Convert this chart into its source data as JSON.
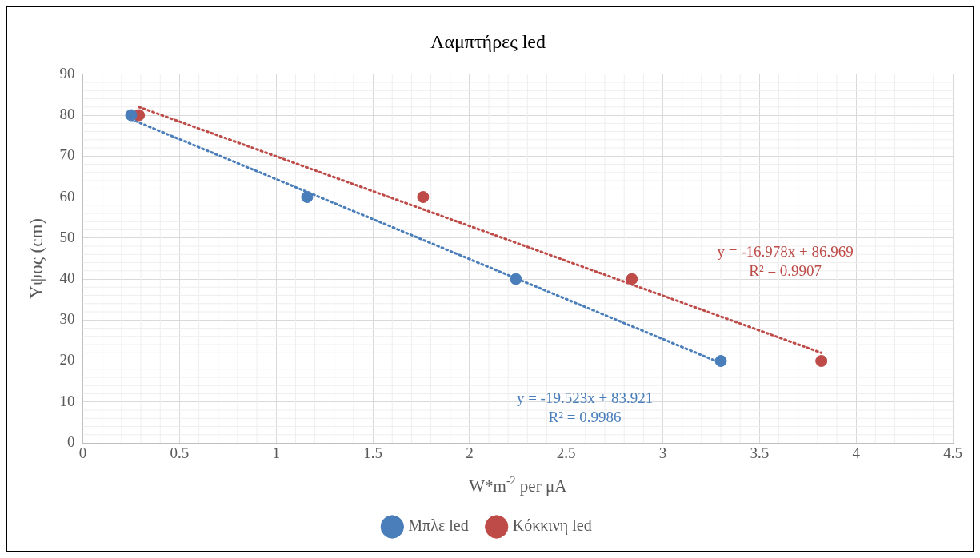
{
  "chart_data": {
    "type": "scatter",
    "title": "Λαμπτήρες led",
    "xlabel": "W*m$^{-2}$ per μA",
    "ylabel": "Υψος (cm)",
    "series": [
      {
        "name": "Μπλε led",
        "color": "#4a7ebb",
        "x": [
          0.25,
          1.16,
          2.24,
          3.3
        ],
        "values": [
          80,
          60,
          40,
          20
        ]
      },
      {
        "name": "Κόκκινη led",
        "color": "#be4b48",
        "x": [
          0.29,
          1.76,
          2.84,
          3.82
        ],
        "values": [
          80,
          60,
          40,
          20
        ]
      },
      {
        "type": "line",
        "color": "#4a7ebb",
        "line_style": "dotted",
        "marker": "none",
        "x": [
          0.25,
          3.3
        ],
        "values": [
          79,
          19.5
        ]
      },
      {
        "type": "line",
        "color": "#be4b48",
        "line_style": "dotted",
        "marker": "none",
        "x": [
          0.29,
          3.82
        ],
        "values": [
          82,
          22
        ]
      }
    ],
    "annotations": [
      "y = -19.523x + 83.921",
      "R² = 0.9986",
      "y = -16.978x + 86.969",
      "R² = 0.9907"
    ],
    "marker": "circle",
    "xlim": [
      0,
      4.5
    ],
    "xticks": [
      0,
      0.5,
      1,
      1.5,
      2,
      2.5,
      3,
      3.5,
      4,
      4.5
    ],
    "ylim": [
      0,
      90
    ],
    "yticks": [
      0,
      10,
      20,
      30,
      40,
      50,
      60,
      70,
      80,
      90
    ],
    "grid": true,
    "legend": "bottom"
  }
}
